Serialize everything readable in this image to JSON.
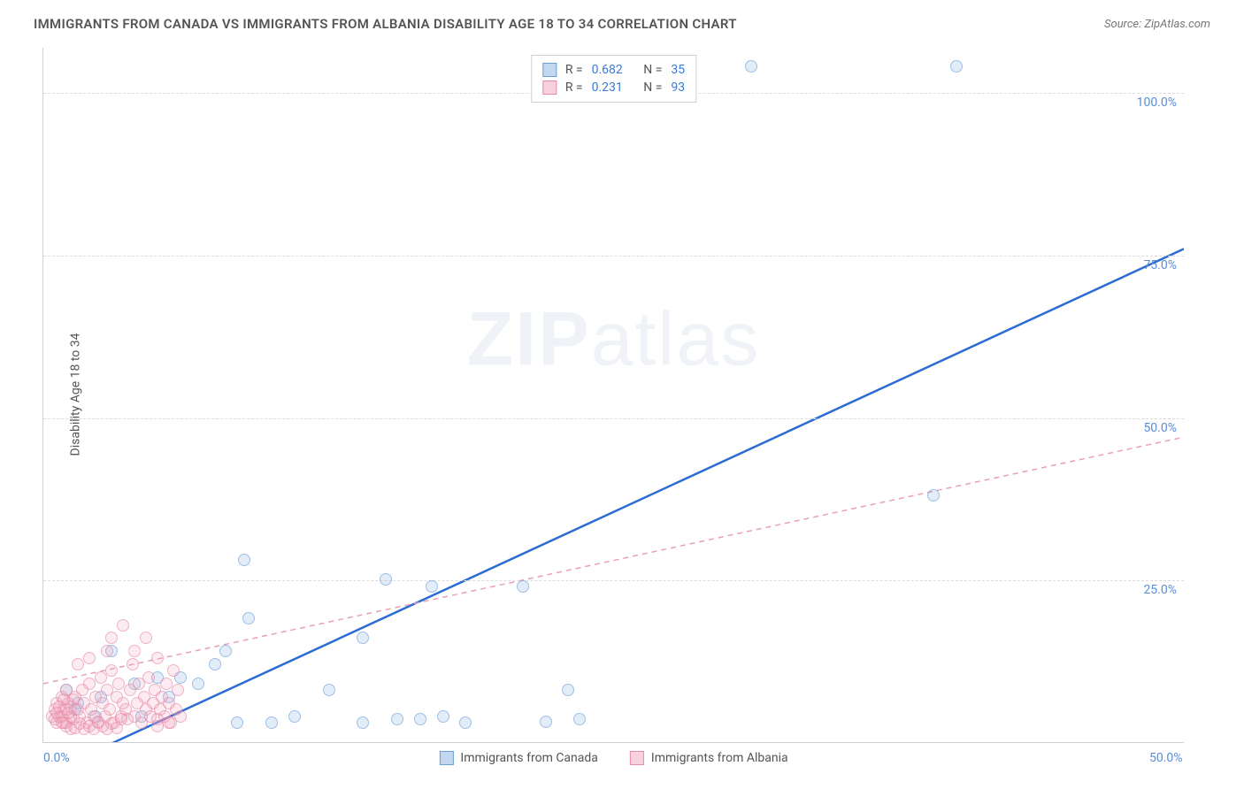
{
  "title": "IMMIGRANTS FROM CANADA VS IMMIGRANTS FROM ALBANIA DISABILITY AGE 18 TO 34 CORRELATION CHART",
  "source": "Source: ZipAtlas.com",
  "ylabel": "Disability Age 18 to 34",
  "watermark_bold": "ZIP",
  "watermark_light": "atlas",
  "chart": {
    "type": "scatter",
    "xlim": [
      0,
      50
    ],
    "ylim": [
      0,
      107
    ],
    "xticks": [
      {
        "v": 0,
        "label": "0.0%"
      },
      {
        "v": 50,
        "label": "50.0%"
      }
    ],
    "yticks": [
      {
        "v": 25,
        "label": "25.0%"
      },
      {
        "v": 50,
        "label": "50.0%"
      },
      {
        "v": 75,
        "label": "75.0%"
      },
      {
        "v": 100,
        "label": "100.0%"
      }
    ],
    "background_color": "#ffffff",
    "grid_color": "#dcdcdc",
    "axis_color": "#d0d0d0",
    "tick_text_color": "#5a8ed6",
    "series": [
      {
        "name": "Immigrants from Canada",
        "color_fill": "rgba(135,176,226,0.35)",
        "color_stroke": "#6a9ed6",
        "marker": "circle",
        "marker_size": 14,
        "R": 0.682,
        "N": 35,
        "points": [
          [
            31,
            104
          ],
          [
            40,
            104
          ],
          [
            39,
            38
          ],
          [
            23,
            8
          ],
          [
            21,
            24
          ],
          [
            8.8,
            28
          ],
          [
            15,
            25
          ],
          [
            17,
            24
          ],
          [
            9,
            19
          ],
          [
            14,
            16
          ],
          [
            5,
            10
          ],
          [
            8,
            14
          ],
          [
            3,
            14
          ],
          [
            2.5,
            7
          ],
          [
            1.5,
            6
          ],
          [
            1,
            8
          ],
          [
            1.4,
            5
          ],
          [
            2.3,
            4
          ],
          [
            4,
            9
          ],
          [
            6,
            10
          ],
          [
            12.5,
            8
          ],
          [
            4.3,
            4
          ],
          [
            5.5,
            7
          ],
          [
            6.8,
            9
          ],
          [
            7.5,
            12
          ],
          [
            8.5,
            3
          ],
          [
            10,
            3
          ],
          [
            11,
            4
          ],
          [
            14,
            3
          ],
          [
            15.5,
            3.5
          ],
          [
            16.5,
            3.5
          ],
          [
            17.5,
            4
          ],
          [
            18.5,
            3
          ],
          [
            22,
            3.2
          ],
          [
            23.5,
            3.5
          ]
        ],
        "trend": {
          "style": "solid",
          "color": "#2a6bd4",
          "width": 2.5,
          "x0": 2.5,
          "y0": -1,
          "x1": 50,
          "y1": 76
        }
      },
      {
        "name": "Immigrants from Albania",
        "color_fill": "rgba(240,165,190,0.35)",
        "color_stroke": "#e88aa8",
        "marker": "circle",
        "marker_size": 14,
        "R": 0.231,
        "N": 93,
        "points": [
          [
            0.6,
            3
          ],
          [
            0.8,
            4
          ],
          [
            0.9,
            5
          ],
          [
            1.0,
            3
          ],
          [
            1.1,
            6
          ],
          [
            1.2,
            4
          ],
          [
            1.3,
            3.5
          ],
          [
            1.4,
            7
          ],
          [
            1.5,
            5
          ],
          [
            1.6,
            4
          ],
          [
            1.7,
            8
          ],
          [
            1.8,
            6
          ],
          [
            1.9,
            3
          ],
          [
            2.0,
            9
          ],
          [
            2.1,
            5
          ],
          [
            2.2,
            4
          ],
          [
            2.3,
            7
          ],
          [
            2.4,
            3
          ],
          [
            2.5,
            10
          ],
          [
            2.6,
            6
          ],
          [
            2.7,
            4
          ],
          [
            2.8,
            8
          ],
          [
            2.9,
            5
          ],
          [
            3.0,
            11
          ],
          [
            3.1,
            3
          ],
          [
            3.2,
            7
          ],
          [
            3.3,
            9
          ],
          [
            3.4,
            4
          ],
          [
            3.5,
            6
          ],
          [
            3.6,
            5
          ],
          [
            3.7,
            3.5
          ],
          [
            3.8,
            8
          ],
          [
            3.9,
            12
          ],
          [
            4.0,
            4
          ],
          [
            4.1,
            6
          ],
          [
            4.2,
            9
          ],
          [
            4.3,
            3
          ],
          [
            4.4,
            7
          ],
          [
            4.5,
            5
          ],
          [
            4.6,
            10
          ],
          [
            4.7,
            4
          ],
          [
            4.8,
            6
          ],
          [
            4.9,
            8
          ],
          [
            5.0,
            3.5
          ],
          [
            5.1,
            5
          ],
          [
            5.2,
            7
          ],
          [
            5.3,
            4
          ],
          [
            5.4,
            9
          ],
          [
            5.5,
            6
          ],
          [
            5.6,
            3
          ],
          [
            5.7,
            11
          ],
          [
            5.8,
            5
          ],
          [
            5.9,
            8
          ],
          [
            6.0,
            4
          ],
          [
            1.0,
            2.5
          ],
          [
            1.2,
            2
          ],
          [
            1.4,
            2.2
          ],
          [
            1.6,
            2.8
          ],
          [
            1.8,
            2
          ],
          [
            2.0,
            2.5
          ],
          [
            2.2,
            2
          ],
          [
            2.4,
            3.2
          ],
          [
            2.6,
            2.5
          ],
          [
            2.8,
            2
          ],
          [
            3.0,
            2.8
          ],
          [
            3.2,
            2.2
          ],
          [
            3.4,
            3.5
          ],
          [
            0.5,
            5
          ],
          [
            0.6,
            6
          ],
          [
            0.7,
            4
          ],
          [
            0.8,
            7
          ],
          [
            0.9,
            3
          ],
          [
            1.0,
            8
          ],
          [
            1.1,
            4.5
          ],
          [
            1.2,
            5.5
          ],
          [
            1.3,
            6.5
          ],
          [
            0.4,
            4
          ],
          [
            0.5,
            3.5
          ],
          [
            0.6,
            4.5
          ],
          [
            0.7,
            5.5
          ],
          [
            0.8,
            3
          ],
          [
            0.9,
            6.5
          ],
          [
            1.0,
            5
          ],
          [
            3.0,
            16
          ],
          [
            4.5,
            16
          ],
          [
            2.8,
            14
          ],
          [
            3.5,
            18
          ],
          [
            4.0,
            14
          ],
          [
            5.0,
            13
          ],
          [
            1.5,
            12
          ],
          [
            2.0,
            13
          ],
          [
            5.0,
            2.5
          ],
          [
            5.5,
            3
          ]
        ],
        "trend": {
          "style": "dashed",
          "color": "#e8a0b4",
          "width": 1.5,
          "x0": 0,
          "y0": 9,
          "x1": 50,
          "y1": 47
        }
      }
    ]
  },
  "legend_top": [
    {
      "swatch": "blue",
      "r_label": "R =",
      "r_val": "0.682",
      "n_label": "N =",
      "n_val": "35"
    },
    {
      "swatch": "pink",
      "r_label": "R =",
      "r_val": "0.231",
      "n_label": "N =",
      "n_val": "93"
    }
  ],
  "legend_bottom": [
    {
      "swatch": "blue",
      "label": "Immigrants from Canada"
    },
    {
      "swatch": "pink",
      "label": "Immigrants from Albania"
    }
  ]
}
